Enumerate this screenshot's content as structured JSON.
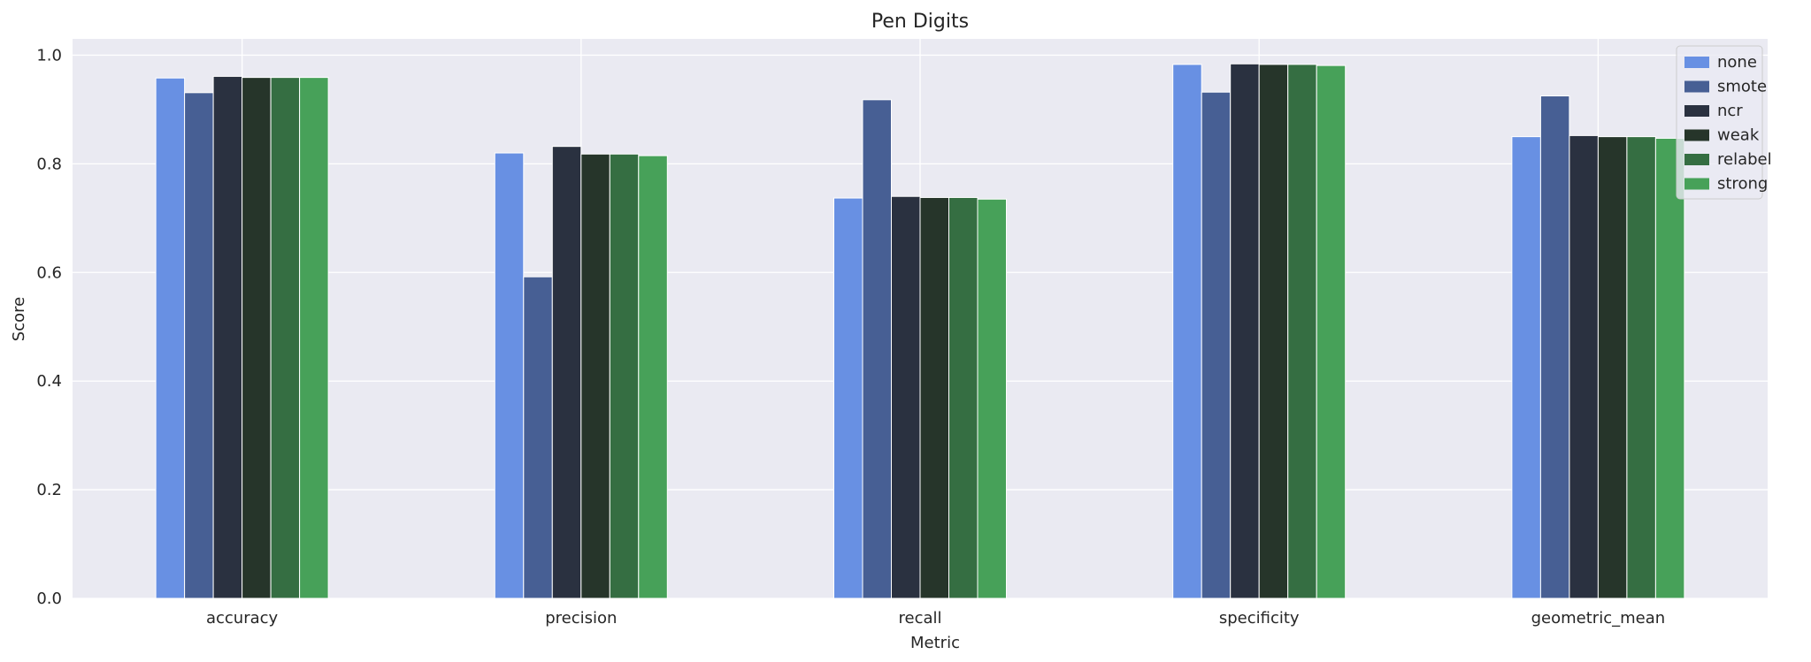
{
  "chart_data": {
    "type": "bar",
    "title": "Pen Digits",
    "xlabel": "Metric",
    "ylabel": "Score",
    "ylim": [
      0,
      1.03
    ],
    "yticks": [
      "0.0",
      "0.2",
      "0.4",
      "0.6",
      "0.8",
      "1.0"
    ],
    "ytick_values": [
      0,
      0.2,
      0.4,
      0.6,
      0.8,
      1.0
    ],
    "grid": true,
    "legend_position": "top-right",
    "categories": [
      "accuracy",
      "precision",
      "recall",
      "specificity",
      "geometric_mean"
    ],
    "series": [
      {
        "name": "none",
        "color": "#6890e3",
        "values": [
          0.958,
          0.82,
          0.737,
          0.983,
          0.85
        ]
      },
      {
        "name": "smote",
        "color": "#475f94",
        "values": [
          0.931,
          0.592,
          0.918,
          0.932,
          0.925
        ]
      },
      {
        "name": "ncr",
        "color": "#2a3140",
        "values": [
          0.961,
          0.832,
          0.74,
          0.984,
          0.852
        ]
      },
      {
        "name": "weak",
        "color": "#26352a",
        "values": [
          0.959,
          0.818,
          0.738,
          0.983,
          0.85
        ]
      },
      {
        "name": "relabel",
        "color": "#356e42",
        "values": [
          0.959,
          0.818,
          0.738,
          0.983,
          0.85
        ]
      },
      {
        "name": "strong",
        "color": "#47a159",
        "values": [
          0.959,
          0.815,
          0.735,
          0.981,
          0.847
        ]
      }
    ]
  }
}
